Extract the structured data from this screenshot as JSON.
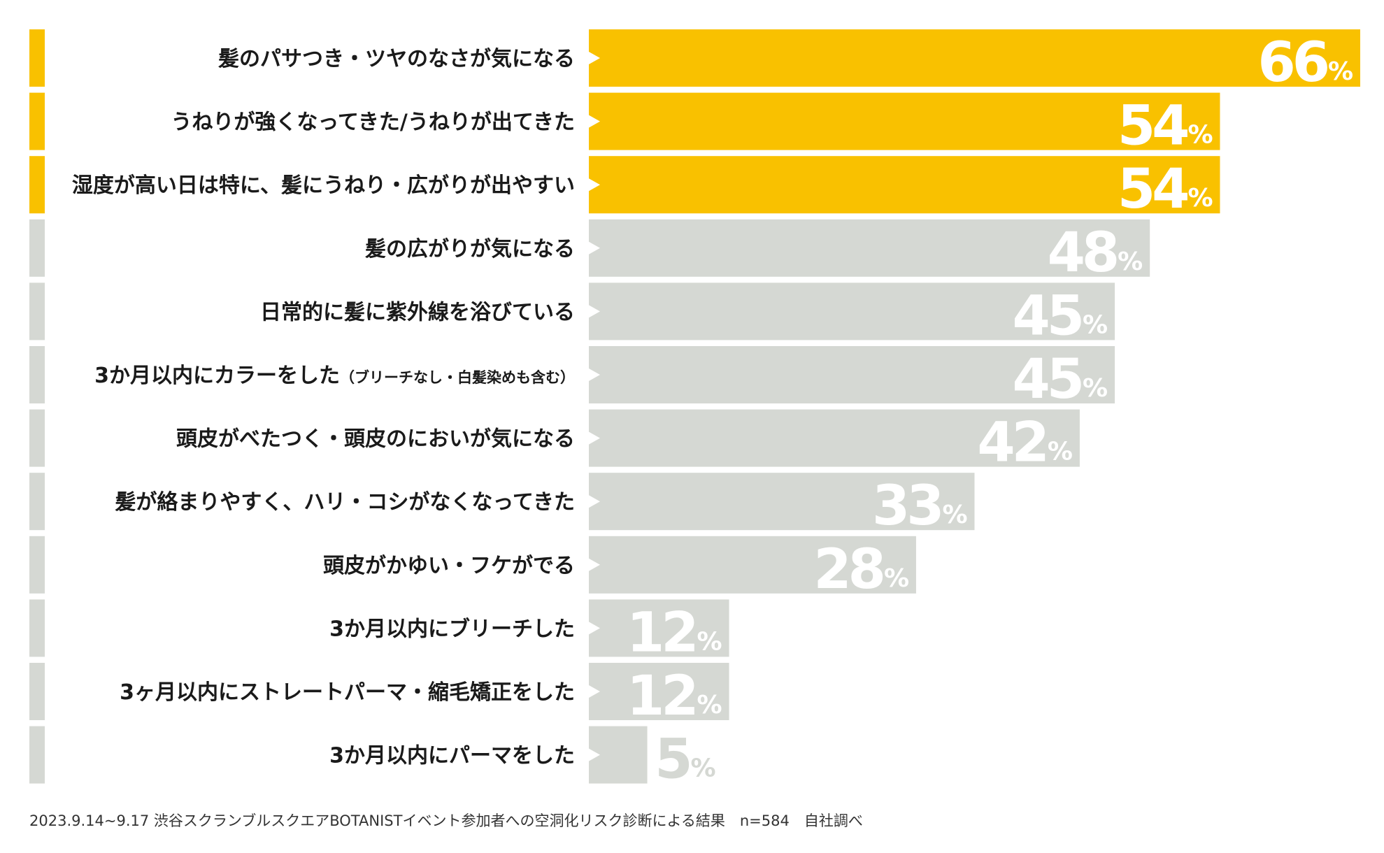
{
  "chart_data": {
    "type": "bar",
    "orientation": "horizontal",
    "categories": [
      "髪のパサつき・ツヤのなさが気になる",
      "うねりが強くなってきた/うねりが出てきた",
      "湿度が高い日は特に、髪にうねり・広がりが出やすい",
      "髪の広がりが気になる",
      "日常的に髪に紫外線を浴びている",
      "3か月以内にカラーをした",
      "頭皮がべたつく・頭皮のにおいが気になる",
      "髪が絡まりやすく、ハリ・コシがなくなってきた",
      "頭皮がかゆい・フケがでる",
      "3か月以内にブリーチした",
      "3ヶ月以内にストレートパーマ・縮毛矯正をした",
      "3か月以内にパーマをした"
    ],
    "category_notes": [
      "",
      "",
      "",
      "",
      "",
      "（ブリーチなし・白髪染めも含む）",
      "",
      "",
      "",
      "",
      "",
      ""
    ],
    "values": [
      66,
      54,
      54,
      48,
      45,
      45,
      42,
      33,
      28,
      12,
      12,
      5
    ],
    "highlighted": [
      true,
      true,
      true,
      false,
      false,
      false,
      false,
      false,
      false,
      false,
      false,
      false
    ],
    "value_unit": "%",
    "xlim": [
      0,
      66
    ],
    "grid": false,
    "legend": "none",
    "colors": {
      "highlight": "#F9C100",
      "normal": "#D5D8D3",
      "label_text": "#1A1A1A",
      "value_text": "#FFFFFF"
    }
  },
  "footnote": "2023.9.14~9.17 渋谷スクランブルスクエアBOTANISTイベント参加者への空洞化リスク診断による結果　n=584　自社調べ"
}
